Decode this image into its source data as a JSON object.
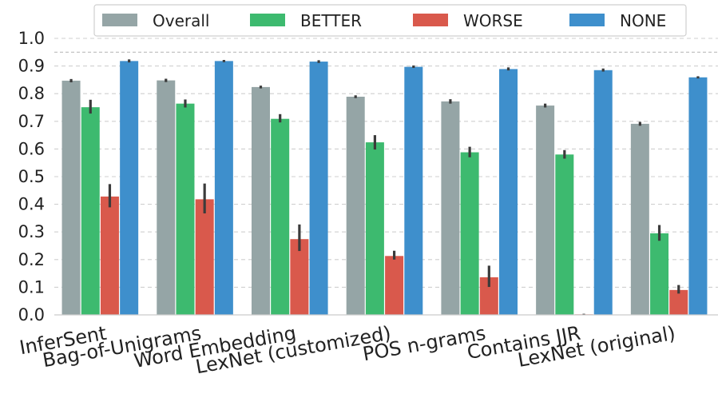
{
  "chart_data": {
    "type": "bar",
    "categories": [
      "InferSent",
      "Bag-of-Unigrams",
      "Word Embedding",
      "LexNet (customized)",
      "POS n-grams",
      "Contains JJR",
      "LexNet (original)"
    ],
    "series": [
      {
        "name": "Overall",
        "color": "#95a5a6",
        "values": [
          0.847,
          0.848,
          0.824,
          0.789,
          0.772,
          0.757,
          0.691
        ],
        "err_low": [
          0.841,
          0.842,
          0.819,
          0.784,
          0.764,
          0.75,
          0.684
        ],
        "err_high": [
          0.853,
          0.854,
          0.829,
          0.794,
          0.78,
          0.764,
          0.698
        ]
      },
      {
        "name": "BETTER",
        "color": "#3dba6f",
        "values": [
          0.751,
          0.764,
          0.709,
          0.624,
          0.588,
          0.58,
          0.295
        ],
        "err_low": [
          0.728,
          0.75,
          0.696,
          0.598,
          0.57,
          0.565,
          0.268
        ],
        "err_high": [
          0.778,
          0.779,
          0.726,
          0.65,
          0.608,
          0.596,
          0.325
        ]
      },
      {
        "name": "WORSE",
        "color": "#d9594c",
        "values": [
          0.428,
          0.418,
          0.274,
          0.213,
          0.136,
          0.002,
          0.09
        ],
        "err_low": [
          0.389,
          0.367,
          0.231,
          0.2,
          0.101,
          0.0,
          0.077
        ],
        "err_high": [
          0.473,
          0.475,
          0.327,
          0.232,
          0.178,
          0.004,
          0.108
        ]
      },
      {
        "name": "NONE",
        "color": "#3e8fcc",
        "values": [
          0.918,
          0.918,
          0.916,
          0.897,
          0.889,
          0.885,
          0.859
        ],
        "err_low": [
          0.913,
          0.914,
          0.911,
          0.893,
          0.884,
          0.88,
          0.855
        ],
        "err_high": [
          0.924,
          0.922,
          0.921,
          0.902,
          0.895,
          0.891,
          0.863
        ]
      }
    ],
    "ylim": [
      0,
      1.0
    ],
    "yticks": [
      "0.0",
      "0.1",
      "0.2",
      "0.3",
      "0.4",
      "0.5",
      "0.6",
      "0.7",
      "0.8",
      "0.9",
      "1.0"
    ],
    "reference_line": 0.95,
    "grid": "horizontal-dashed",
    "legend_position": "top",
    "xlabel": "",
    "ylabel": ""
  }
}
